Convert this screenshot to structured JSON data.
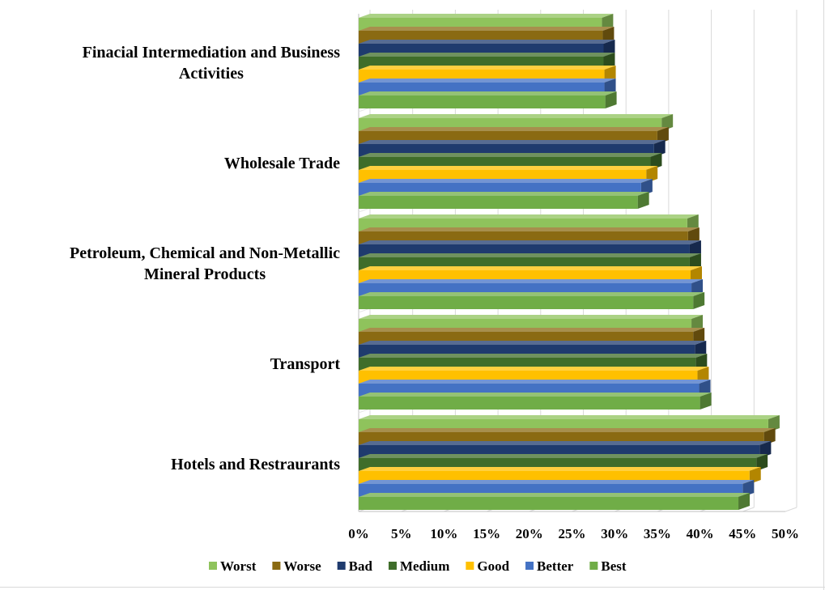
{
  "chart_data": {
    "type": "bar",
    "orientation": "horizontal",
    "style": "3d-clustered",
    "categories": [
      "Finacial Intermediation and Business Activities",
      "Wholesale Trade",
      "Petroleum, Chemical and Non-Metallic Mineral Products",
      "Transport",
      "Hotels and Restraurants"
    ],
    "category_lines": [
      [
        "Finacial Intermediation and Business",
        "Activities"
      ],
      [
        "Wholesale Trade"
      ],
      [
        "Petroleum, Chemical and Non-Metallic",
        "Mineral Products"
      ],
      [
        "Transport"
      ],
      [
        "Hotels and Restraurants"
      ]
    ],
    "series": [
      {
        "name": "Worst",
        "color": "#8fc35c",
        "values": [
          28.5,
          35.5,
          38.5,
          39.0,
          48.0
        ]
      },
      {
        "name": "Worse",
        "color": "#8a6a12",
        "values": [
          28.6,
          35.0,
          38.6,
          39.2,
          47.5
        ]
      },
      {
        "name": "Bad",
        "color": "#1f3b6e",
        "values": [
          28.7,
          34.6,
          38.8,
          39.4,
          47.0
        ]
      },
      {
        "name": "Medium",
        "color": "#3f6d2a",
        "values": [
          28.7,
          34.2,
          38.8,
          39.5,
          46.6
        ]
      },
      {
        "name": "Good",
        "color": "#ffc000",
        "values": [
          28.8,
          33.7,
          38.9,
          39.7,
          45.8
        ]
      },
      {
        "name": "Better",
        "color": "#4472c4",
        "values": [
          28.8,
          33.1,
          39.0,
          39.9,
          45.0
        ]
      },
      {
        "name": "Best",
        "color": "#70ad47",
        "values": [
          28.9,
          32.7,
          39.2,
          40.0,
          44.5
        ]
      }
    ],
    "x_ticks": [
      "0%",
      "5%",
      "10%",
      "15%",
      "20%",
      "25%",
      "30%",
      "35%",
      "40%",
      "45%",
      "50%"
    ],
    "xlim": [
      0,
      50
    ],
    "grid": true,
    "legend_position": "bottom"
  }
}
